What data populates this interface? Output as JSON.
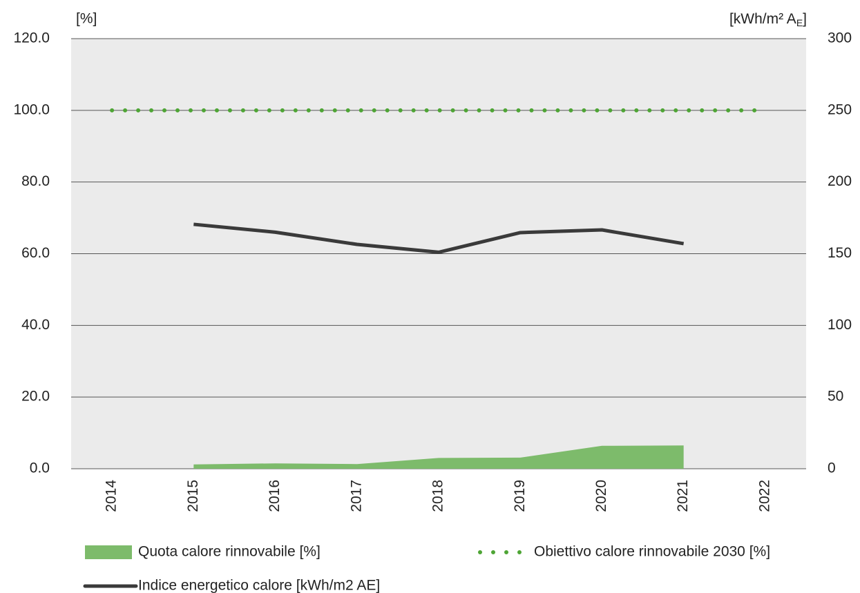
{
  "chart_data": {
    "type": "area_line",
    "y_label": "[%]",
    "y2_label": {
      "main": "[kWh/m² A",
      "sub": "E",
      "end": "]"
    },
    "categories": [
      "2014",
      "2015",
      "2016",
      "2017",
      "2018",
      "2019",
      "2020",
      "2021",
      "2022"
    ],
    "series": [
      {
        "name": "Quota calore rinnovabile [%]",
        "kind": "area",
        "color": "#7dbb6b",
        "values": [
          null,
          1.2,
          1.5,
          1.3,
          3.0,
          3.1,
          6.4,
          6.5,
          null
        ]
      },
      {
        "name": "Obiettivo calore rinnovabile 2030 [%]",
        "kind": "dotted",
        "color": "#4ea535",
        "values": [
          100,
          100,
          100,
          100,
          100,
          100,
          100,
          100,
          100
        ]
      },
      {
        "name": "Indice energetico calore [kWh/m2 AE]",
        "kind": "line",
        "axis": "y2",
        "color": "#3a3a3a",
        "values": [
          null,
          170.5,
          165,
          156.5,
          151,
          164.7,
          166.6,
          157,
          null
        ]
      }
    ],
    "ylim": [
      0,
      120
    ],
    "yticks": [
      {
        "value": 0,
        "label": "0.0"
      },
      {
        "value": 20,
        "label": "20.0"
      },
      {
        "value": 40,
        "label": "40.0"
      },
      {
        "value": 60,
        "label": "60.0"
      },
      {
        "value": 80,
        "label": "80.0"
      },
      {
        "value": 100,
        "label": "100.0"
      },
      {
        "value": 120,
        "label": "120.0"
      }
    ],
    "y2lim": [
      0,
      300
    ],
    "y2ticks": [
      0,
      50,
      100,
      150,
      200,
      250,
      300
    ],
    "grid": true
  }
}
